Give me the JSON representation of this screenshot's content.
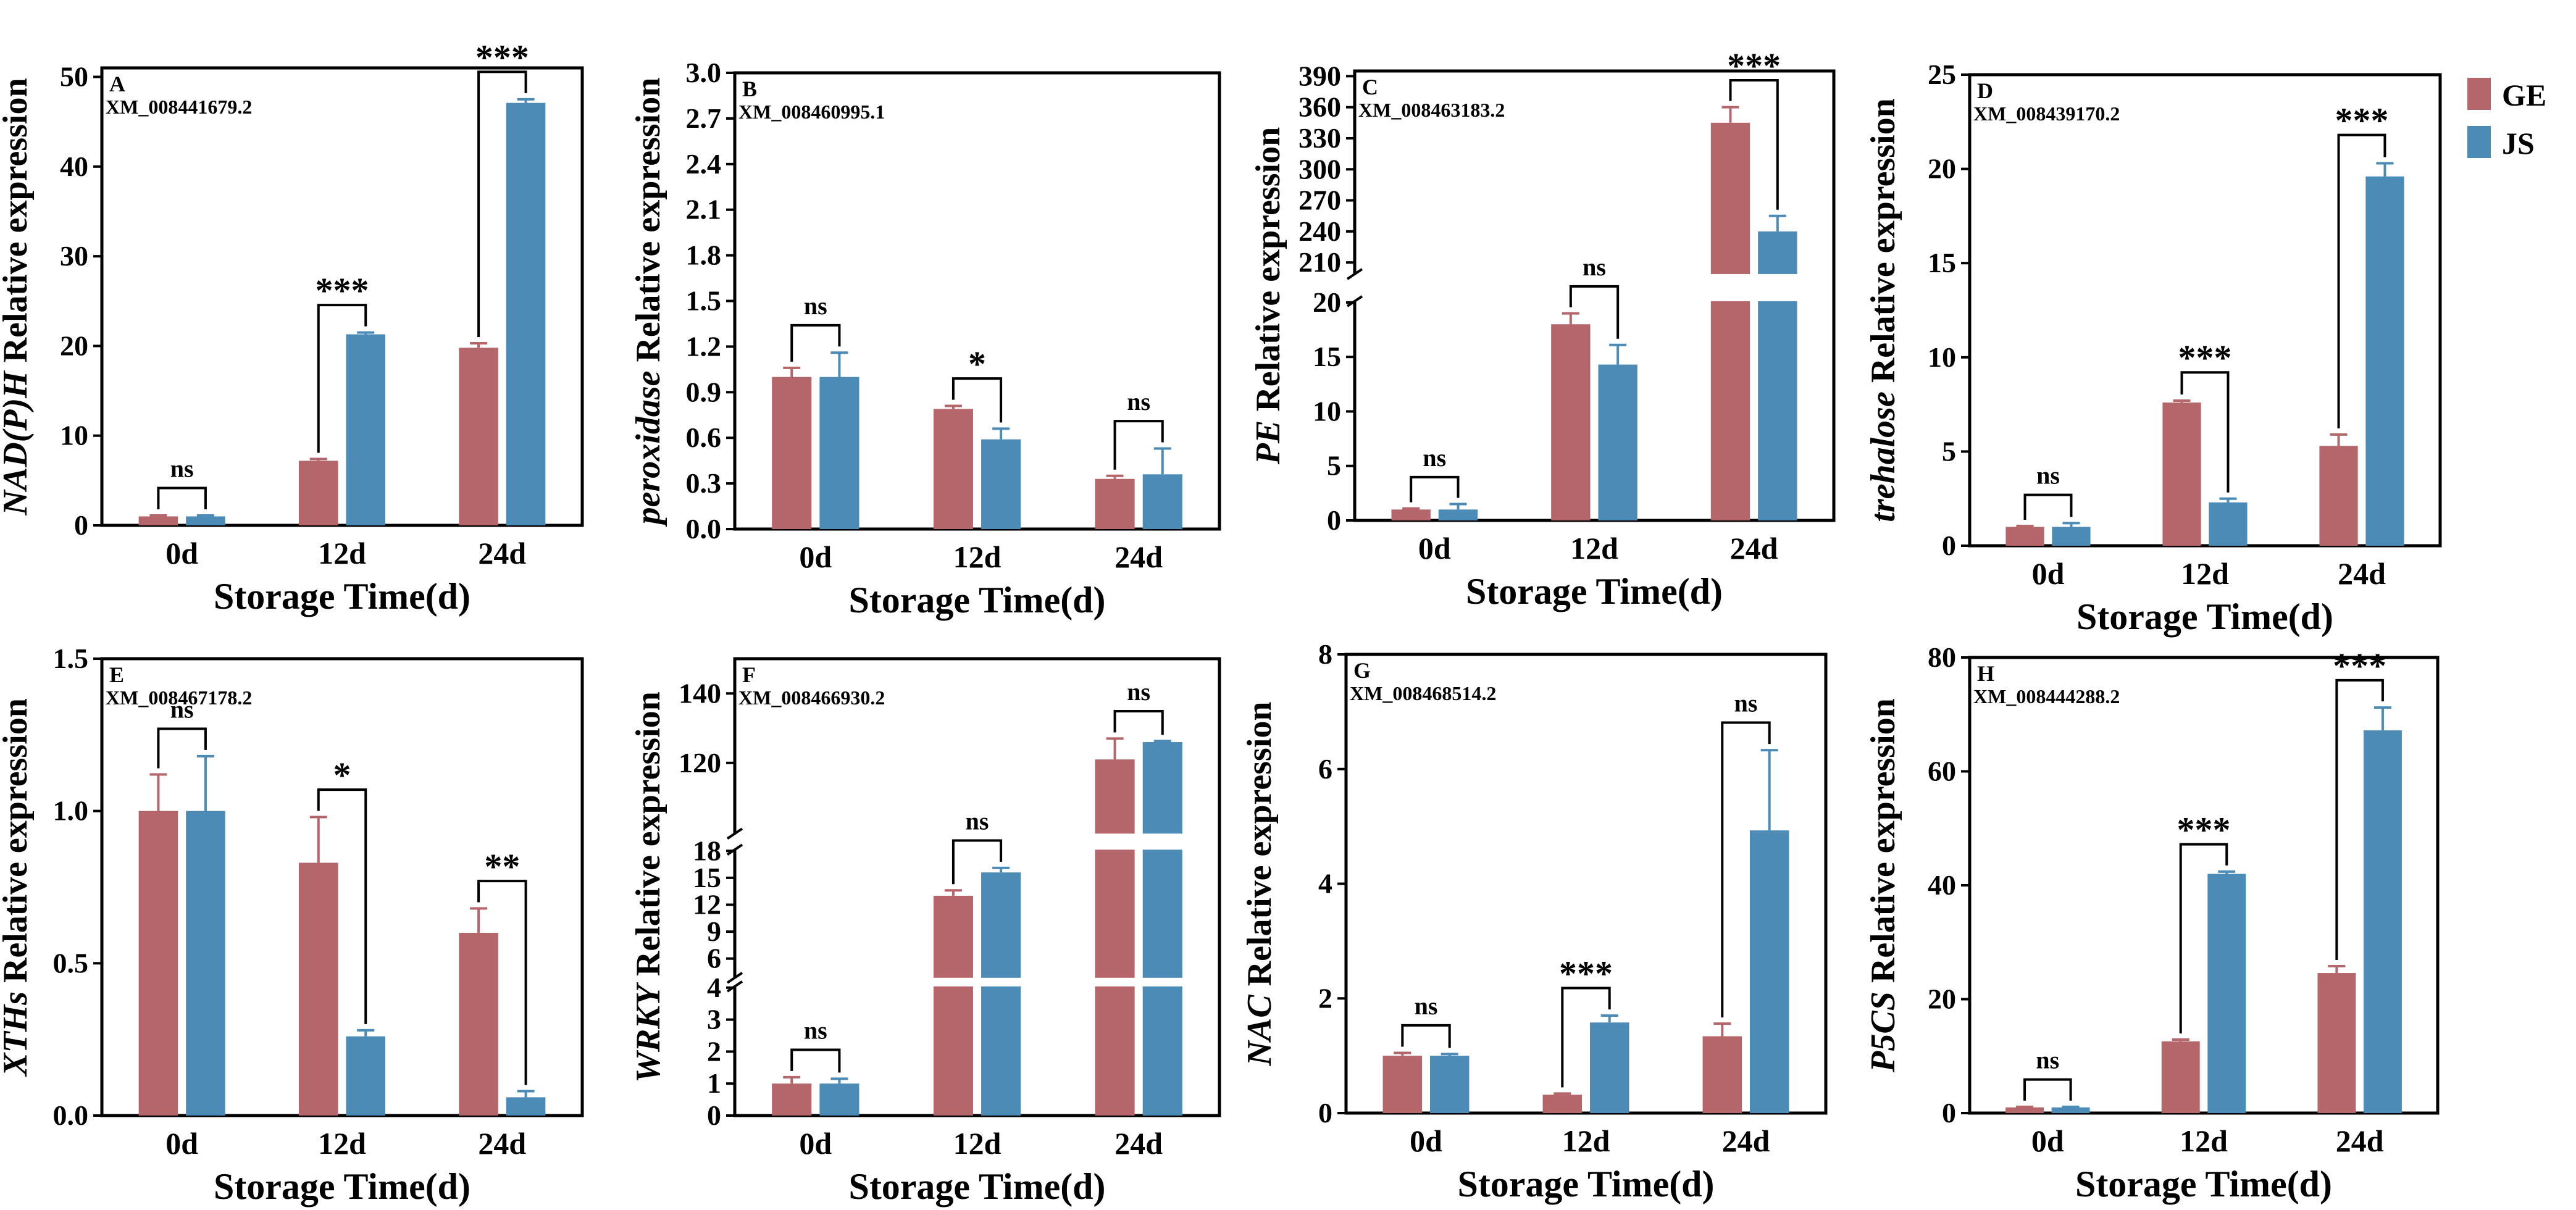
{
  "chart_data": [
    {
      "panel": "A",
      "gene_id": "XM_008441679.2",
      "gene": "NAD(P)H",
      "ylabel_suffix": " Relative expression",
      "type": "bar",
      "categories": [
        "0d",
        "12d",
        "24d"
      ],
      "xlabel": "Storage Time(d)",
      "ylim": [
        0,
        51
      ],
      "ticks": [
        0,
        10,
        20,
        30,
        40,
        50
      ],
      "series": [
        {
          "name": "GE",
          "values": [
            1.0,
            7.2,
            19.8
          ],
          "errors": [
            0.1,
            0.2,
            0.5
          ]
        },
        {
          "name": "JS",
          "values": [
            1.0,
            21.3,
            47.1
          ],
          "errors": [
            0.1,
            0.2,
            0.4
          ]
        }
      ],
      "significance": [
        "ns",
        "***",
        "***"
      ]
    },
    {
      "panel": "B",
      "gene_id": "XM_008460995.1",
      "gene": "peroxidase",
      "ylabel_suffix": " Relative expression",
      "type": "bar",
      "categories": [
        "0d",
        "12d",
        "24d"
      ],
      "xlabel": "Storage Time(d)",
      "ylim": [
        0,
        3.0
      ],
      "ticks": [
        "0.0",
        "0.3",
        "0.6",
        "0.9",
        "1.2",
        "1.5",
        "1.8",
        "2.1",
        "2.4",
        "2.7",
        "3.0"
      ],
      "series": [
        {
          "name": "GE",
          "values": [
            1.0,
            0.79,
            0.33
          ],
          "errors": [
            0.06,
            0.02,
            0.02
          ]
        },
        {
          "name": "JS",
          "values": [
            1.0,
            0.59,
            0.36
          ],
          "errors": [
            0.16,
            0.07,
            0.17
          ]
        }
      ],
      "significance": [
        "ns",
        "*",
        "ns"
      ]
    },
    {
      "panel": "C",
      "gene_id": "XM_008463183.2",
      "gene": "PE",
      "ylabel_suffix": " Relative expression",
      "type": "bar",
      "categories": [
        "0d",
        "12d",
        "24d"
      ],
      "xlabel": "Storage Time(d)",
      "broken_axis": {
        "lower": [
          0,
          20
        ],
        "upper": [
          200,
          395
        ]
      },
      "ticks_lower": [
        0,
        5,
        10,
        15,
        20
      ],
      "ticks_upper": [
        210,
        240,
        270,
        300,
        330,
        360,
        390
      ],
      "series": [
        {
          "name": "GE",
          "values": [
            1.0,
            18.0,
            345.0
          ],
          "errors": [
            0.1,
            1.0,
            15.0
          ]
        },
        {
          "name": "JS",
          "values": [
            1.0,
            14.3,
            240.0
          ],
          "errors": [
            0.5,
            1.8,
            15.0
          ]
        }
      ],
      "significance": [
        "ns",
        "ns",
        "***"
      ]
    },
    {
      "panel": "D",
      "gene_id": "XM_008439170.2",
      "gene": "trehalose",
      "ylabel_suffix": " Relative expression",
      "type": "bar",
      "categories": [
        "0d",
        "12d",
        "24d"
      ],
      "xlabel": "Storage Time(d)",
      "ylim": [
        0,
        25
      ],
      "ticks": [
        0,
        5,
        10,
        15,
        20,
        25
      ],
      "series": [
        {
          "name": "GE",
          "values": [
            1.0,
            7.6,
            5.3
          ],
          "errors": [
            0.05,
            0.1,
            0.6
          ]
        },
        {
          "name": "JS",
          "values": [
            1.0,
            2.3,
            19.6
          ],
          "errors": [
            0.2,
            0.2,
            0.7
          ]
        }
      ],
      "significance": [
        "ns",
        "***",
        "***"
      ]
    },
    {
      "panel": "E",
      "gene_id": "XM_008467178.2",
      "gene": "XTHs",
      "ylabel_suffix": " Relative expression",
      "type": "bar",
      "categories": [
        "0d",
        "12d",
        "24d"
      ],
      "xlabel": "Storage Time(d)",
      "ylim": [
        0,
        1.5
      ],
      "ticks": [
        "0.0",
        "0.5",
        "1.0",
        "1.5"
      ],
      "series": [
        {
          "name": "GE",
          "values": [
            1.0,
            0.83,
            0.6
          ],
          "errors": [
            0.12,
            0.15,
            0.08
          ]
        },
        {
          "name": "JS",
          "values": [
            1.0,
            0.26,
            0.06
          ],
          "errors": [
            0.18,
            0.02,
            0.02
          ]
        }
      ],
      "significance": [
        "ns",
        "*",
        "**"
      ]
    },
    {
      "panel": "F",
      "gene_id": "XM_008466930.2",
      "gene": "WRKY",
      "ylabel_suffix": " Relative expression",
      "type": "bar",
      "categories": [
        "0d",
        "12d",
        "24d"
      ],
      "xlabel": "Storage Time(d)",
      "broken_axis": {
        "lower": [
          0,
          4
        ],
        "middle": [
          4,
          18
        ],
        "upper": [
          100,
          150
        ]
      },
      "ticks_lower": [
        0,
        1,
        2,
        3,
        4
      ],
      "ticks_middle": [
        6,
        9,
        12,
        15,
        18
      ],
      "ticks_upper": [
        120,
        140
      ],
      "series": [
        {
          "name": "GE",
          "values": [
            1.0,
            13.0,
            121.0
          ],
          "errors": [
            0.2,
            0.6,
            6.0
          ]
        },
        {
          "name": "JS",
          "values": [
            1.0,
            15.6,
            126.0
          ],
          "errors": [
            0.15,
            0.5,
            0.3
          ]
        }
      ],
      "significance": [
        "ns",
        "ns",
        "ns"
      ]
    },
    {
      "panel": "G",
      "gene_id": "XM_008468514.2",
      "gene": "NAC",
      "ylabel_suffix": " Relative expression",
      "type": "bar",
      "categories": [
        "0d",
        "12d",
        "24d"
      ],
      "xlabel": "Storage Time(d)",
      "ylim": [
        0,
        8
      ],
      "ticks": [
        0,
        2,
        4,
        6,
        8
      ],
      "series": [
        {
          "name": "GE",
          "values": [
            1.0,
            0.32,
            1.34
          ],
          "errors": [
            0.05,
            0.02,
            0.22
          ]
        },
        {
          "name": "JS",
          "values": [
            1.0,
            1.58,
            4.93
          ],
          "errors": [
            0.03,
            0.12,
            1.4
          ]
        }
      ],
      "significance": [
        "ns",
        "***",
        "ns"
      ]
    },
    {
      "panel": "H",
      "gene_id": "XM_008444288.2",
      "gene": "P5CS",
      "ylabel_suffix": " Relative expression",
      "type": "bar",
      "categories": [
        "0d",
        "12d",
        "24d"
      ],
      "xlabel": "Storage Time(d)",
      "ylim": [
        0,
        80
      ],
      "ticks": [
        0,
        20,
        40,
        60,
        80
      ],
      "series": [
        {
          "name": "GE",
          "values": [
            1.0,
            12.6,
            24.6
          ],
          "errors": [
            0.1,
            0.3,
            1.2
          ]
        },
        {
          "name": "JS",
          "values": [
            1.0,
            42.0,
            67.2
          ],
          "errors": [
            0.1,
            0.4,
            4.0
          ]
        }
      ],
      "significance": [
        "ns",
        "***",
        "***"
      ]
    }
  ],
  "legend": [
    {
      "name": "GE",
      "color": "#b5666b"
    },
    {
      "name": "JS",
      "color": "#4d8bb7"
    }
  ]
}
